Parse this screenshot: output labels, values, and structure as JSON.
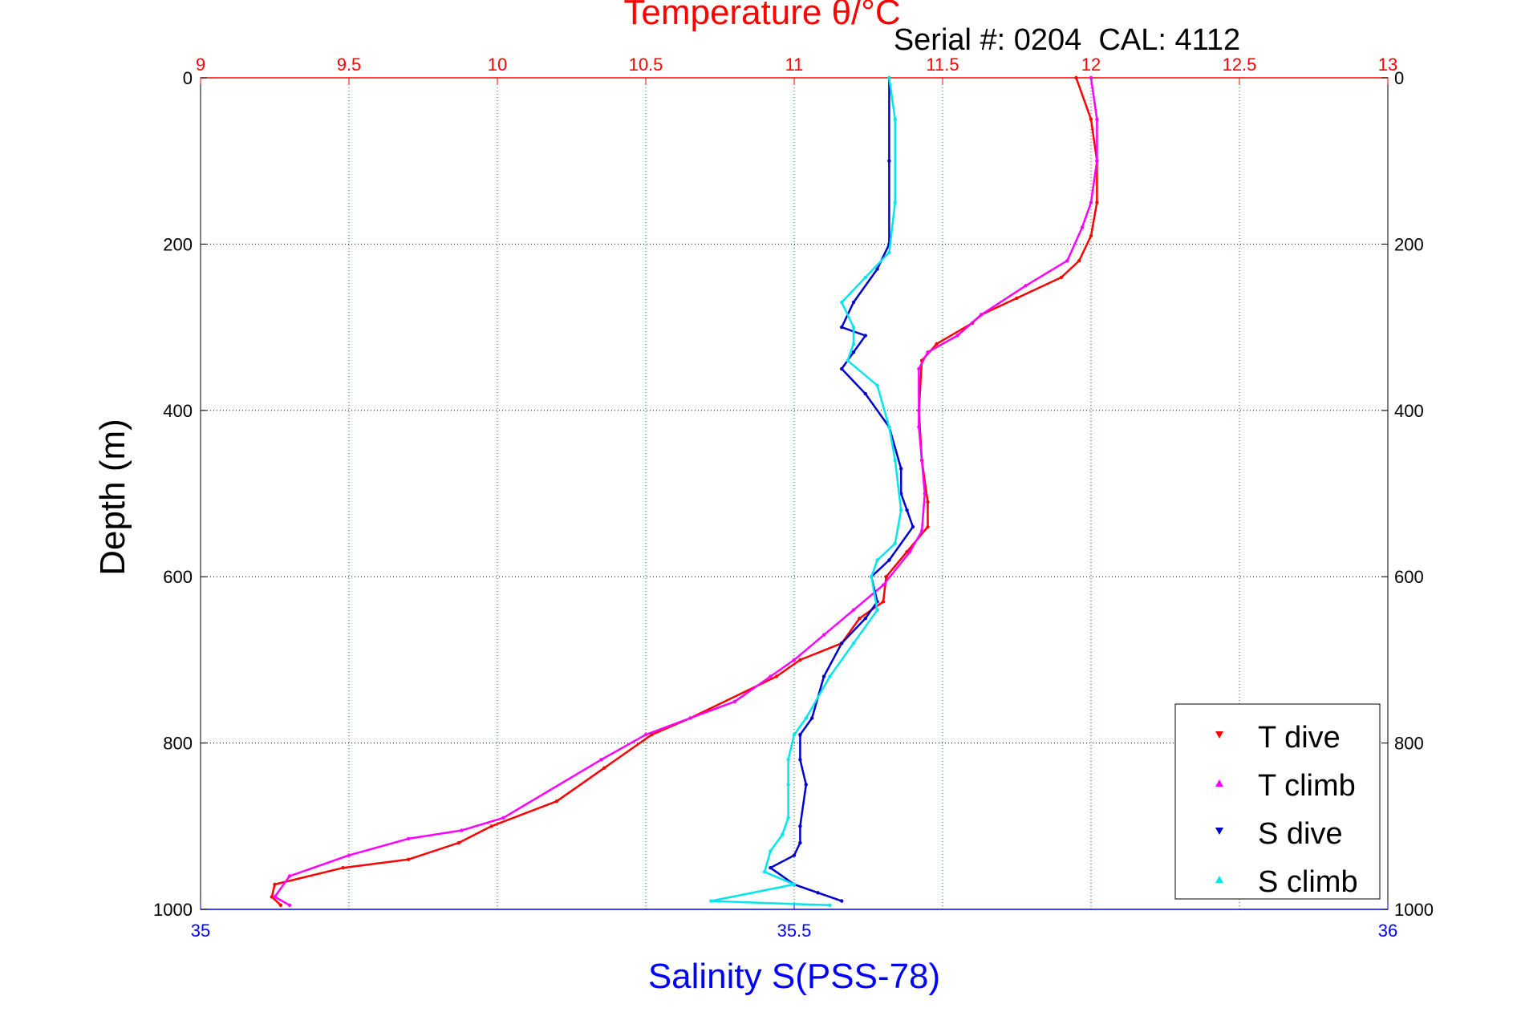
{
  "chart_data": {
    "type": "scatter",
    "title": "Temperature θ/°C",
    "subtitle": "Serial #: 0204  CAL: 4112",
    "ylabel": "Depth (m)",
    "xlabel": "Salinity S(PSS-78)",
    "top_axis": {
      "label": "Temperature θ/°C",
      "range": [
        9,
        13
      ],
      "ticks": [
        "9",
        "9.5",
        "10",
        "10.5",
        "11",
        "11.5",
        "12",
        "12.5",
        "13"
      ],
      "color": "#ff0000"
    },
    "bottom_axis": {
      "label": "Salinity S(PSS-78)",
      "range": [
        35,
        36
      ],
      "ticks": [
        "35",
        "35.5",
        "36"
      ],
      "color": "#0000ff"
    },
    "y_axis": {
      "label": "Depth (m)",
      "range": [
        0,
        1000
      ],
      "reversed": true,
      "ticks": [
        "0",
        "200",
        "400",
        "600",
        "800",
        "1000"
      ]
    },
    "grid": true,
    "legend": {
      "placement": "bottom-right",
      "entries": [
        {
          "label": "T dive",
          "color": "#ff0000"
        },
        {
          "label": "T climb",
          "color": "#ff00ff"
        },
        {
          "label": "S dive",
          "color": "#0000cc"
        },
        {
          "label": "S climb",
          "color": "#00e5ee"
        }
      ]
    },
    "series": [
      {
        "name": "T dive",
        "axis": "temperature",
        "color": "#ff0000",
        "x": [
          11.95,
          12.0,
          12.02,
          12.02,
          12.0,
          11.96,
          11.9,
          11.75,
          11.63,
          11.6,
          11.48,
          11.43,
          11.42,
          11.43,
          11.45,
          11.45,
          11.38,
          11.31,
          11.3,
          11.22,
          11.16,
          11.02,
          10.94,
          10.65,
          10.52,
          10.36,
          10.2,
          9.98,
          9.87,
          9.7,
          9.48,
          9.25,
          9.24,
          9.27
        ],
        "y": [
          0,
          50,
          100,
          150,
          190,
          220,
          240,
          265,
          285,
          295,
          320,
          340,
          400,
          460,
          510,
          540,
          570,
          600,
          630,
          650,
          680,
          700,
          720,
          770,
          790,
          830,
          870,
          900,
          920,
          940,
          950,
          970,
          985,
          995
        ]
      },
      {
        "name": "T climb",
        "axis": "temperature",
        "color": "#ff00ff",
        "x": [
          12.0,
          12.02,
          12.02,
          12.0,
          11.97,
          11.92,
          11.78,
          11.63,
          11.55,
          11.45,
          11.42,
          11.42,
          11.44,
          11.43,
          11.39,
          11.3,
          11.2,
          11.1,
          11.0,
          10.92,
          10.8,
          10.5,
          10.35,
          10.02,
          9.88,
          9.7,
          9.5,
          9.3,
          9.25,
          9.3
        ],
        "y": [
          0,
          50,
          100,
          150,
          180,
          220,
          250,
          285,
          310,
          330,
          350,
          420,
          500,
          545,
          570,
          610,
          640,
          670,
          700,
          720,
          750,
          790,
          820,
          890,
          905,
          915,
          935,
          960,
          985,
          995
        ]
      },
      {
        "name": "S dive",
        "axis": "salinity",
        "color": "#0000cc",
        "x": [
          35.58,
          35.58,
          35.58,
          35.57,
          35.55,
          35.54,
          35.56,
          35.55,
          35.54,
          35.56,
          35.58,
          35.59,
          35.59,
          35.595,
          35.6,
          35.58,
          35.565,
          35.57,
          35.56,
          35.54,
          35.525,
          35.515,
          35.505,
          35.505,
          35.51,
          35.505,
          35.505,
          35.5,
          35.48,
          35.5,
          35.52,
          35.54
        ],
        "y": [
          0,
          100,
          200,
          230,
          270,
          300,
          310,
          330,
          350,
          380,
          420,
          470,
          500,
          520,
          540,
          580,
          600,
          630,
          650,
          680,
          720,
          770,
          790,
          820,
          850,
          900,
          920,
          935,
          950,
          970,
          980,
          990
        ]
      },
      {
        "name": "S climb",
        "axis": "salinity",
        "color": "#00e5ee",
        "x": [
          35.58,
          35.585,
          35.585,
          35.58,
          35.56,
          35.54,
          35.55,
          35.55,
          35.545,
          35.57,
          35.58,
          35.585,
          35.59,
          35.585,
          35.57,
          35.565,
          35.57,
          35.55,
          35.53,
          35.51,
          35.5,
          35.495,
          35.495,
          35.495,
          35.49,
          35.48,
          35.475,
          35.5,
          35.43,
          35.53
        ],
        "y": [
          0,
          50,
          150,
          210,
          240,
          270,
          300,
          320,
          340,
          370,
          420,
          460,
          520,
          560,
          580,
          600,
          640,
          680,
          720,
          770,
          790,
          820,
          850,
          890,
          910,
          930,
          955,
          970,
          990,
          995
        ]
      }
    ]
  }
}
